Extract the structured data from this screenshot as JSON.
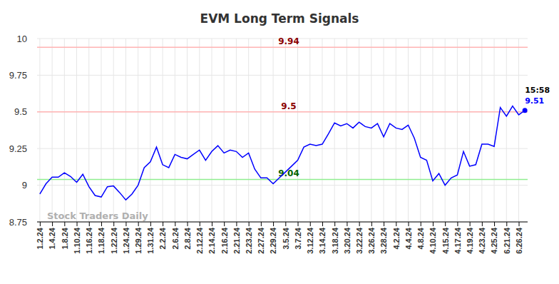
{
  "chart_data": {
    "type": "line",
    "title": "EVM Long Term Signals",
    "categories": [
      "1.2.24",
      null,
      "1.4.24",
      null,
      "1.8.24",
      null,
      "1.10.24",
      null,
      "1.16.24",
      null,
      "1.18.24",
      null,
      "1.22.24",
      null,
      "1.24.24",
      null,
      "1.29.24",
      null,
      "1.31.24",
      null,
      "2.2.24",
      null,
      "2.6.24",
      null,
      "2.8.24",
      null,
      "2.12.24",
      null,
      "2.14.24",
      null,
      "2.16.24",
      null,
      "2.21.24",
      null,
      "2.23.24",
      null,
      "2.27.24",
      null,
      "2.29.24",
      null,
      "3.5.24",
      null,
      "3.7.24",
      null,
      "3.12.24",
      null,
      "3.14.24",
      null,
      "3.18.24",
      null,
      "3.20.24",
      null,
      "3.22.24",
      null,
      "3.26.24",
      null,
      "3.28.24",
      null,
      "4.2.24",
      null,
      "4.4.24",
      null,
      "4.8.24",
      null,
      "4.10.24",
      null,
      "4.15.24",
      null,
      "4.17.24",
      null,
      "4.19.24",
      null,
      "4.23.24",
      null,
      "4.25.24",
      null,
      "6.21.24",
      null,
      "6.26.24",
      null
    ],
    "series": [
      {
        "name": "EVM",
        "color": "#0000ff",
        "marker": "last",
        "values": [
          8.94,
          9.01,
          9.055,
          9.055,
          9.085,
          9.06,
          9.02,
          9.075,
          8.99,
          8.93,
          8.92,
          8.99,
          8.995,
          8.95,
          8.9,
          8.94,
          9.0,
          9.12,
          9.16,
          9.26,
          9.14,
          9.12,
          9.21,
          9.19,
          9.18,
          9.21,
          9.24,
          9.17,
          9.23,
          9.27,
          9.22,
          9.24,
          9.23,
          9.19,
          9.22,
          9.11,
          9.05,
          9.05,
          9.01,
          9.05,
          9.09,
          9.13,
          9.17,
          9.26,
          9.28,
          9.27,
          9.28,
          9.35,
          9.425,
          9.405,
          9.42,
          9.39,
          9.43,
          9.4,
          9.39,
          9.42,
          9.33,
          9.42,
          9.39,
          9.38,
          9.41,
          9.32,
          9.19,
          9.17,
          9.03,
          9.08,
          9.0,
          9.05,
          9.07,
          9.23,
          9.13,
          9.14,
          9.28,
          9.28,
          9.265,
          9.53,
          9.47,
          9.54,
          9.48,
          9.51
        ]
      }
    ],
    "ylim": [
      8.75,
      10
    ],
    "yticks": [
      8.75,
      9,
      9.25,
      9.5,
      9.75,
      10
    ],
    "grid": true,
    "reference_lines": [
      {
        "value": 9.94,
        "label": "9.94",
        "color": "#ffb3b3",
        "label_color": "#8b0000"
      },
      {
        "value": 9.5,
        "label": "9.5",
        "color": "#ffb3b3",
        "label_color": "#8b0000"
      },
      {
        "value": 9.04,
        "label": "9.04",
        "color": "#90ee90",
        "label_color": "#006400"
      }
    ],
    "annotations": [
      {
        "text": "15:58"
      }
    ],
    "watermark": "Stock Traders Daily"
  }
}
